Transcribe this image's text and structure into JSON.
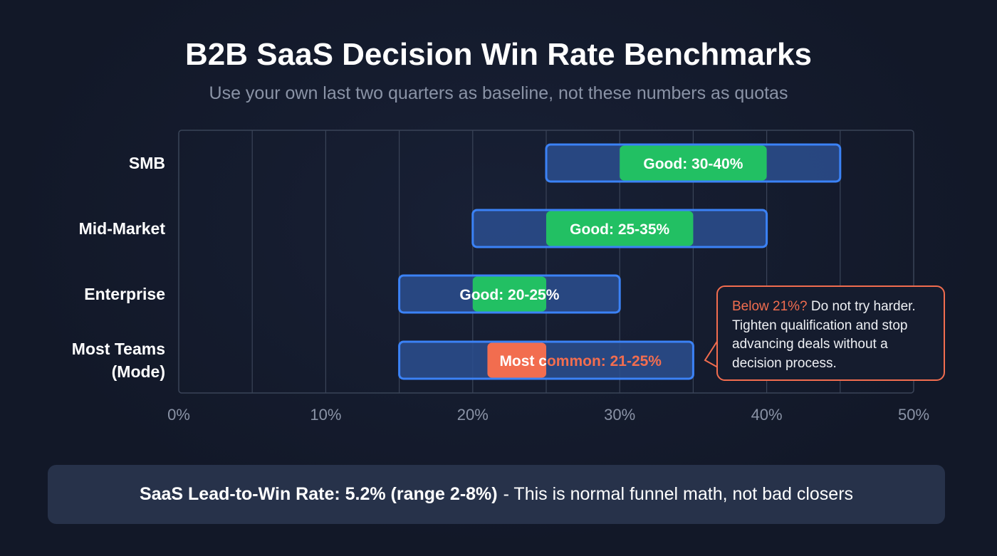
{
  "title": "B2B SaaS Decision Win Rate Benchmarks",
  "subtitle": "Use your own last two quarters as baseline, not these numbers as quotas",
  "chart_data": {
    "type": "bar",
    "subtype": "floating-range",
    "xlim": [
      0,
      50
    ],
    "x_ticks": [
      "0%",
      "10%",
      "20%",
      "30%",
      "40%",
      "50%"
    ],
    "grid": true,
    "categories": [
      "SMB",
      "Mid-Market",
      "Enterprise",
      "Most Teams (Mode)"
    ],
    "rows": [
      {
        "label": "SMB",
        "range": [
          25,
          45
        ],
        "highlight": [
          30,
          40
        ],
        "highlight_label": "Good: 30-40%",
        "highlight_kind": "good"
      },
      {
        "label": "Mid-Market",
        "range": [
          20,
          40
        ],
        "highlight": [
          25,
          35
        ],
        "highlight_label": "Good: 25-35%",
        "highlight_kind": "good"
      },
      {
        "label": "Enterprise",
        "range": [
          15,
          30
        ],
        "highlight": [
          20,
          25
        ],
        "highlight_label": "Good: 20-25%",
        "highlight_kind": "good"
      },
      {
        "label": "Most Teams (Mode)",
        "label_lines": [
          "Most Teams",
          "(Mode)"
        ],
        "range": [
          15,
          35
        ],
        "highlight": [
          21,
          25
        ],
        "highlight_label": "Most common: 21-25%",
        "highlight_kind": "mode"
      }
    ],
    "colors": {
      "range_fill": "#2b4f8f",
      "range_stroke": "#3b82f6",
      "good": "#22c063",
      "mode": "#f26d4f",
      "grid": "#3a4458"
    }
  },
  "callout": {
    "highlight": "Below 21%?",
    "text": " Do not try harder. Tighten qualification and stop advancing deals without a decision process."
  },
  "footer": {
    "bold": "SaaS Lead-to-Win Rate: 5.2% (range 2-8%)",
    "text": "- This is normal funnel math, not bad closers"
  }
}
